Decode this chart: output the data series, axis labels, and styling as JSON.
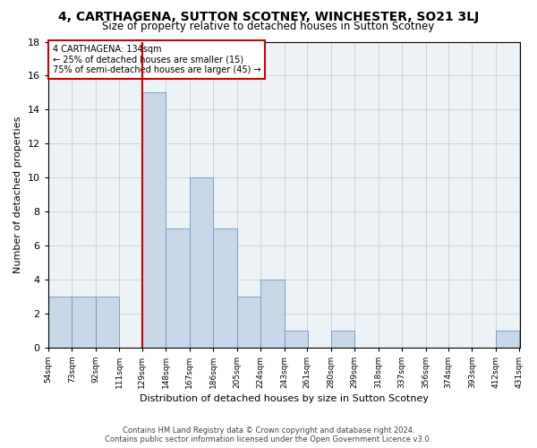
{
  "title": "4, CARTHAGENA, SUTTON SCOTNEY, WINCHESTER, SO21 3LJ",
  "subtitle": "Size of property relative to detached houses in Sutton Scotney",
  "xlabel": "Distribution of detached houses by size in Sutton Scotney",
  "ylabel": "Number of detached properties",
  "bar_color": "#c8d8e8",
  "bar_edge_color": "#6a9abf",
  "bins": [
    54,
    73,
    92,
    111,
    129,
    148,
    167,
    186,
    205,
    224,
    243,
    261,
    280,
    299,
    318,
    337,
    356,
    374,
    393,
    412,
    431
  ],
  "counts": [
    3,
    3,
    3,
    0,
    15,
    7,
    10,
    7,
    3,
    4,
    1,
    0,
    1,
    0,
    0,
    0,
    0,
    0,
    0,
    1
  ],
  "annotation_text": "4 CARTHAGENA: 134sqm\n← 25% of detached houses are smaller (15)\n75% of semi-detached houses are larger (45) →",
  "annotation_box_color": "#ffffff",
  "annotation_box_edgecolor": "#cc0000",
  "vline_color": "#cc0000",
  "vline_x": 129,
  "ylim": [
    0,
    18
  ],
  "yticks": [
    0,
    2,
    4,
    6,
    8,
    10,
    12,
    14,
    16,
    18
  ],
  "tick_labels": [
    "54sqm",
    "73sqm",
    "92sqm",
    "111sqm",
    "129sqm",
    "148sqm",
    "167sqm",
    "186sqm",
    "205sqm",
    "224sqm",
    "243sqm",
    "261sqm",
    "280sqm",
    "299sqm",
    "318sqm",
    "337sqm",
    "356sqm",
    "374sqm",
    "393sqm",
    "412sqm",
    "431sqm"
  ],
  "footer_line1": "Contains HM Land Registry data © Crown copyright and database right 2024.",
  "footer_line2": "Contains public sector information licensed under the Open Government Licence v3.0.",
  "background_color": "#edf2f7",
  "grid_color": "#c0c8d0",
  "title_fontsize": 10,
  "subtitle_fontsize": 8.5,
  "xlabel_fontsize": 8,
  "ylabel_fontsize": 8,
  "tick_fontsize": 6.5,
  "ytick_fontsize": 8,
  "annotation_fontsize": 7,
  "footer_fontsize": 6
}
